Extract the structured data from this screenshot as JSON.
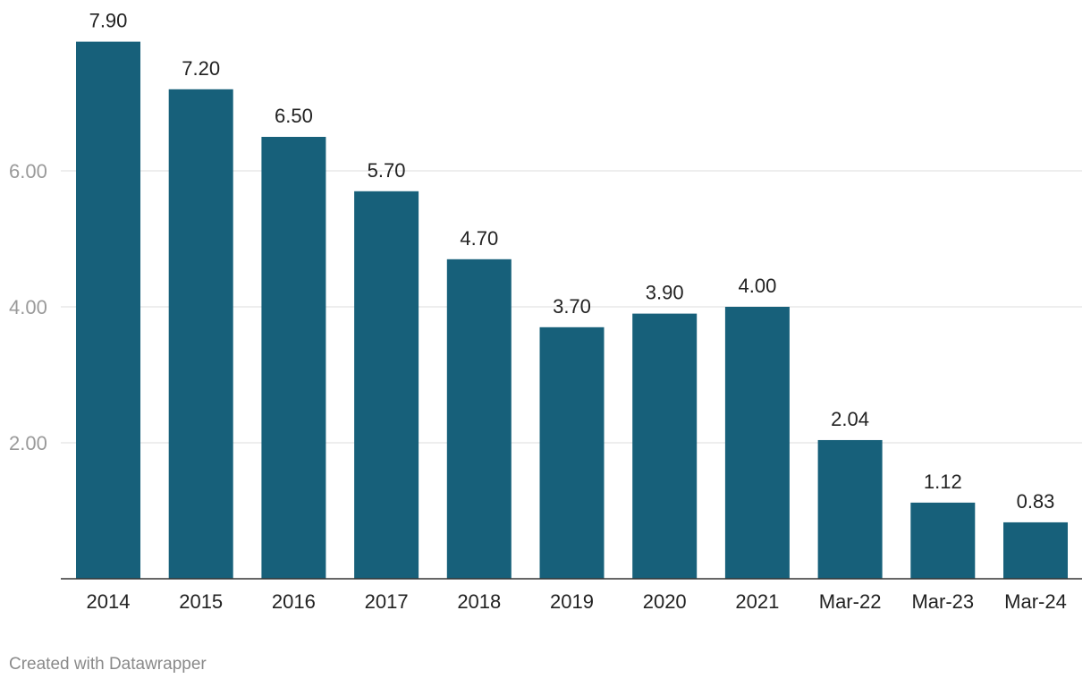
{
  "chart_data": {
    "type": "bar",
    "categories": [
      "2014",
      "2015",
      "2016",
      "2017",
      "2018",
      "2019",
      "2020",
      "2021",
      "Mar-22",
      "Mar-23",
      "Mar-24"
    ],
    "values": [
      7.9,
      7.2,
      6.5,
      5.7,
      4.7,
      3.7,
      3.9,
      4.0,
      2.04,
      1.12,
      0.83
    ],
    "value_labels": [
      "7.90",
      "7.20",
      "6.50",
      "5.70",
      "4.70",
      "3.70",
      "3.90",
      "4.00",
      "2.04",
      "1.12",
      "0.83"
    ],
    "y_ticks": [
      2,
      4,
      6
    ],
    "y_tick_labels": [
      "2.00",
      "4.00",
      "6.00"
    ],
    "ylim": [
      0,
      8
    ],
    "grid": true,
    "bar_color": "#17607a",
    "title": "",
    "xlabel": "",
    "ylabel": ""
  },
  "footer": {
    "credit": "Created with Datawrapper"
  }
}
